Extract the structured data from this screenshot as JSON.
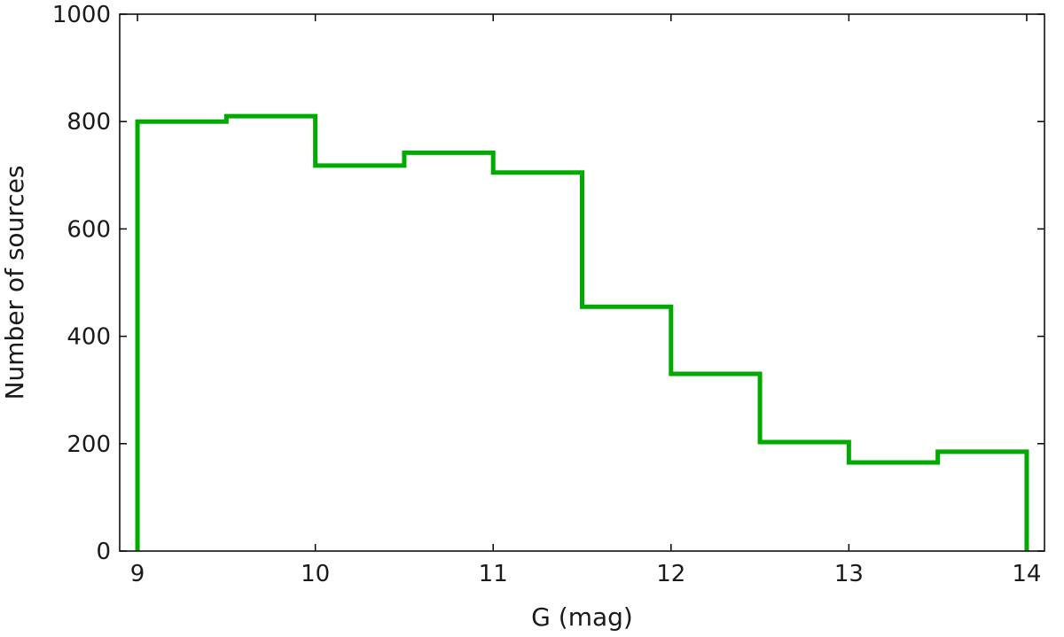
{
  "chart_data": {
    "type": "histogram",
    "title": "",
    "xlabel": "G (mag)",
    "ylabel": "Number of sources",
    "xlim": [
      8.9,
      14.1
    ],
    "ylim": [
      0,
      1000
    ],
    "xticks": [
      9,
      10,
      11,
      12,
      13,
      14
    ],
    "yticks": [
      0,
      200,
      400,
      600,
      800,
      1000
    ],
    "bin_edges": [
      9,
      9.5,
      10,
      10.5,
      11,
      11.5,
      12,
      12.5,
      13,
      13.5,
      14
    ],
    "counts": [
      800,
      810,
      718,
      742,
      705,
      455,
      330,
      203,
      165,
      185
    ],
    "color": "#00aa00",
    "grid": false
  }
}
